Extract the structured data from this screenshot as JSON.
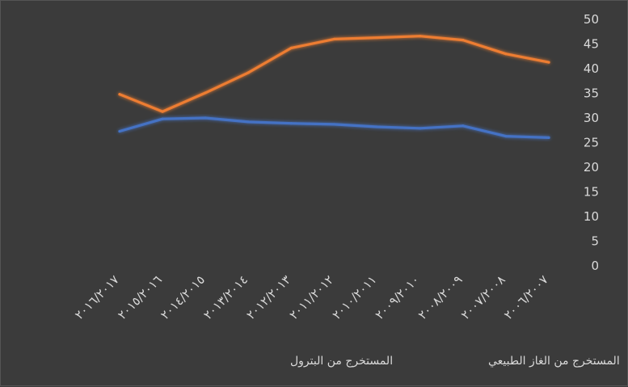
{
  "chart_data": {
    "type": "line",
    "categories": [
      "٢٠١٦/٢٠١٧",
      "٢٠١٥/٢٠١٦",
      "٢٠١٤/٢٠١٥",
      "٢٠١٣/٢٠١٤",
      "٢٠١٢/٢٠١٣",
      "٢٠١١/٢٠١٢",
      "٢٠١٠/٢٠١١",
      "٢٠٠٩/٢٠١٠",
      "٢٠٠٨/٢٠٠٩",
      "٢٠٠٧/٢٠٠٨",
      "٢٠٠٦/٢٠٠٧"
    ],
    "series": [
      {
        "name": "المستخرج من البترول",
        "color": "#4472c4",
        "values": [
          27.3,
          29.8,
          30.0,
          29.2,
          28.9,
          28.7,
          28.2,
          27.9,
          28.4,
          26.3,
          26.0
        ]
      },
      {
        "name": "المستخرج من الغاز الطبيعي",
        "color": "#ed7d31",
        "values": [
          34.8,
          31.3,
          35.1,
          39.2,
          44.2,
          46.0,
          46.3,
          46.6,
          45.8,
          43.0,
          41.3
        ]
      }
    ],
    "yticks": [
      "0",
      "5",
      "10",
      "15",
      "20",
      "25",
      "30",
      "35",
      "40",
      "45",
      "50"
    ],
    "ylim": [
      0,
      50
    ],
    "y_axis_side": "right",
    "grid": false,
    "legend_position": "bottom",
    "background": "#3b3b3b",
    "text_color": "#d9d9d9"
  }
}
